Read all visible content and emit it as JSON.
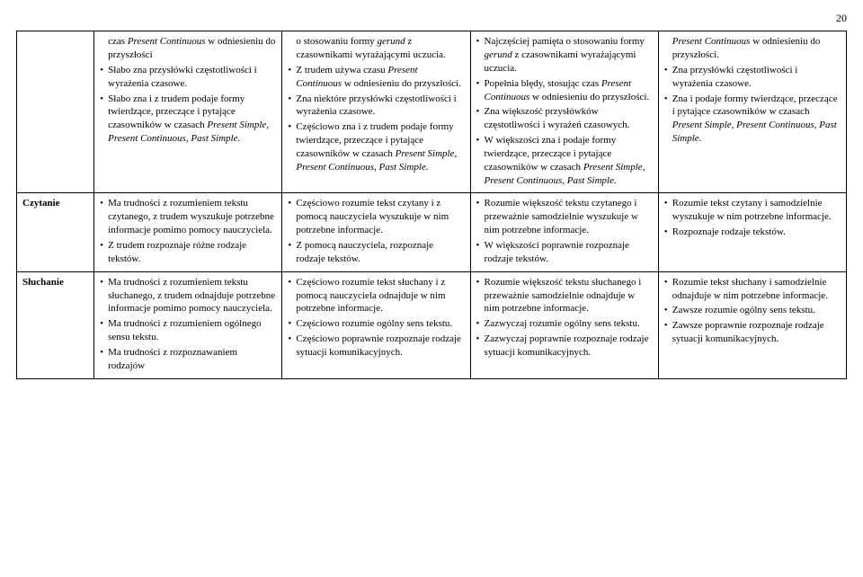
{
  "page_number": "20",
  "rows": [
    {
      "head": "",
      "cols": [
        {
          "intro": "czas <em>Present Continuous</em> w odniesieniu do przyszłości",
          "items": [
            "Słabo zna przysłówki częstotliwości i wyrażenia czasowe.",
            "Słabo zna i z trudem podaje formy twierdzące, przeczące i pytające czasowników w czasach <em>Present Simple, Present Continuous, Past Simple.</em>"
          ]
        },
        {
          "intro": "o stosowaniu formy <em>gerund</em> z czasownikami wyrażającymi uczucia.",
          "items": [
            "Z trudem używa czasu <em>Present Continuous</em> w odniesieniu do przyszłości.",
            "Zna niektóre przysłówki częstotliwości i wyrażenia czasowe.",
            "Częściowo zna i z trudem podaje formy twierdzące, przeczące i pytające czasowników w czasach <em>Present Simple, Present Continuous, Past Simple.</em>"
          ]
        },
        {
          "items": [
            "Najczęściej pamięta o stosowaniu formy <em>gerund</em> z czasownikami wyrażającymi uczucia.",
            "Popełnia błędy, stosując czas <em>Present Continuous</em> w odniesieniu do przyszłości.",
            "Zna większość przysłówków częstotliwości i wyrażeń czasowych.",
            "W większości zna i podaje formy twierdzące, przeczące i pytające czasowników w czasach <em>Present Simple, Present Continuous, Past Simple.</em>"
          ]
        },
        {
          "intro": "<em>Present Continuous</em> w odniesieniu do przyszłości.",
          "items": [
            "Zna przysłówki częstotliwości i wyrażenia czasowe.",
            "Zna i podaje formy twierdzące, przeczące i pytające czasowników w czasach <em>Present Simple, Present Continuous, Past Simple.</em>"
          ]
        }
      ]
    },
    {
      "head": "Czytanie",
      "cols": [
        {
          "items": [
            "Ma trudności z rozumieniem tekstu czytanego, z trudem wyszukuje potrzebne informacje pomimo pomocy nauczyciela.",
            "Z trudem rozpoznaje różne rodzaje tekstów."
          ]
        },
        {
          "items": [
            "Częściowo rozumie tekst czytany i z pomocą nauczyciela wyszukuje w nim potrzebne informacje.",
            "Z pomocą nauczyciela, rozpoznaje rodzaje tekstów."
          ]
        },
        {
          "items": [
            "Rozumie większość tekstu czytanego i przeważnie samodzielnie wyszukuje w nim potrzebne informacje.",
            "W większości poprawnie rozpoznaje rodzaje tekstów."
          ]
        },
        {
          "items": [
            "Rozumie tekst czytany i samodzielnie wyszukuje w nim potrzebne informacje.",
            "Rozpoznaje rodzaje tekstów."
          ]
        }
      ]
    },
    {
      "head": "Słuchanie",
      "cols": [
        {
          "items": [
            "Ma trudności z rozumieniem tekstu słuchanego, z trudem odnajduje potrzebne informacje pomimo pomocy nauczyciela.",
            "Ma trudności z rozumieniem ogólnego sensu tekstu.",
            "Ma trudności z rozpoznawaniem rodzajów"
          ]
        },
        {
          "items": [
            "Częściowo rozumie tekst słuchany i z pomocą nauczyciela odnajduje w nim potrzebne informacje.",
            "Częściowo rozumie ogólny sens tekstu.",
            "Częściowo poprawnie rozpoznaje rodzaje sytuacji komunikacyjnych."
          ]
        },
        {
          "items": [
            "Rozumie większość tekstu słuchanego i przeważnie samodzielnie odnajduje w nim potrzebne informacje.",
            "Zazwyczaj rozumie ogólny sens tekstu.",
            "Zazwyczaj poprawnie rozpoznaje rodzaje sytuacji komunikacyjnych."
          ]
        },
        {
          "items": [
            "Rozumie tekst słuchany i samodzielnie odnajduje w nim potrzebne informacje.",
            "Zawsze rozumie ogólny sens tekstu.",
            "Zawsze poprawnie rozpoznaje rodzaje sytuacji komunikacyjnych."
          ]
        }
      ]
    }
  ]
}
